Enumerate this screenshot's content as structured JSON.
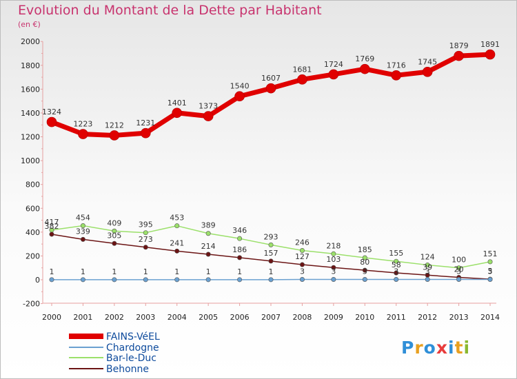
{
  "title": "Evolution du Montant de la Dette par Habitant",
  "unit_label": "(en €)",
  "logo": {
    "text": "Proxiti",
    "colors": [
      "#2f8fd8",
      "#e8a020",
      "#2f8fd8",
      "#e83c3c",
      "#2f8fd8",
      "#e8a020",
      "#8ab830"
    ]
  },
  "chart_data": {
    "type": "line",
    "x": [
      2000,
      2001,
      2002,
      2003,
      2004,
      2005,
      2006,
      2007,
      2008,
      2009,
      2010,
      2011,
      2012,
      2013,
      2014
    ],
    "ylim": [
      -200,
      2000
    ],
    "yticks": [
      -200,
      0,
      200,
      400,
      600,
      800,
      1000,
      1200,
      1400,
      1600,
      1800,
      2000
    ],
    "grid": false,
    "legend_position": "bottom-left",
    "series": [
      {
        "name": "FAINS-VéEL",
        "color": "#e00000",
        "width": 7,
        "marker": 7,
        "values": [
          1324,
          1223,
          1212,
          1231,
          1401,
          1373,
          1540,
          1607,
          1681,
          1724,
          1769,
          1716,
          1745,
          1879,
          1891
        ],
        "labels": [
          "1324",
          "1223",
          "1212",
          "1231",
          "1401",
          "1373",
          "1540",
          "1607",
          "1681",
          "1724",
          "1769",
          "1716",
          "1745",
          "1879",
          "1891"
        ]
      },
      {
        "name": "Chardogne",
        "color": "#6aa0d0",
        "width": 1.5,
        "marker": 3.2,
        "values": [
          1,
          1,
          1,
          1,
          1,
          1,
          1,
          1,
          3,
          3,
          3,
          3,
          3,
          3,
          3
        ],
        "labels": [
          "1",
          "1",
          "1",
          "1",
          "1",
          "1",
          "1",
          "1",
          "3",
          "3",
          "3",
          "3",
          "3",
          "3",
          "3"
        ]
      },
      {
        "name": "Bar-le-Duc",
        "color": "#9be06a",
        "width": 1.5,
        "marker": 3.2,
        "values": [
          417,
          454,
          409,
          395,
          453,
          389,
          346,
          293,
          246,
          218,
          185,
          155,
          124,
          100,
          151
        ],
        "labels": [
          "417",
          "454",
          "409",
          "395",
          "453",
          "389",
          "346",
          "293",
          "246",
          "218",
          "185",
          "155",
          "124",
          "100",
          "151"
        ]
      },
      {
        "name": "Behonne",
        "color": "#6b1414",
        "width": 1.5,
        "marker": 3.2,
        "values": [
          382,
          339,
          305,
          273,
          241,
          214,
          186,
          157,
          127,
          103,
          80,
          58,
          39,
          20,
          5
        ],
        "labels": [
          "382",
          "339",
          "305",
          "273",
          "241",
          "214",
          "186",
          "157",
          "127",
          "103",
          "80",
          "58",
          "39",
          "20",
          "5"
        ]
      }
    ]
  }
}
